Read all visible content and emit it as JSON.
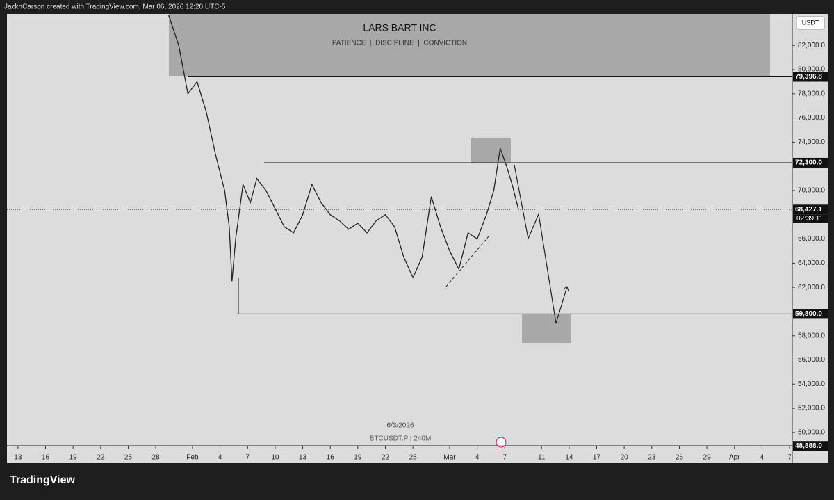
{
  "header": {
    "credit": "JacknCarson created with TradingView.com, Mar 06, 2026 12:20 UTC-5"
  },
  "footer": {
    "logo": "TradingView"
  },
  "chart_data": {
    "type": "line",
    "title": "LARS BART INC",
    "subtitle": "PATIENCE  |  DISCIPLINE  |  CONVICTION",
    "watermark": [
      "6/3/2026",
      "BTCUSDT.P | 240M"
    ],
    "currency_button": "USDT",
    "series": [
      {
        "name": "BTCUSDT.P",
        "color": "#222222",
        "x": [
          29.4,
          30.5,
          31.5,
          32.5,
          33.5,
          34.5,
          35.5,
          36,
          36.3,
          36.7,
          37.5,
          38.3,
          39,
          40,
          41,
          42,
          43,
          44,
          45,
          46,
          47,
          48,
          49,
          50,
          51,
          52,
          53,
          54,
          55,
          56,
          57,
          58,
          59,
          60,
          61,
          62,
          63,
          64,
          64.8,
          65.5,
          66.2,
          66.8,
          67.5
        ],
        "values": [
          84500,
          82000,
          78000,
          79000,
          76500,
          73000,
          70000,
          67000,
          62500,
          66000,
          70500,
          69000,
          71000,
          70000,
          68500,
          67000,
          66500,
          68000,
          70500,
          69000,
          68000,
          67500,
          66800,
          67300,
          66500,
          67500,
          68000,
          67000,
          64500,
          62800,
          64500,
          69500,
          67000,
          65000,
          63500,
          66500,
          66000,
          68000,
          70000,
          73500,
          72000,
          70500,
          68400
        ]
      }
    ],
    "xlim": [
      11.8,
      97.3
    ],
    "ylim": [
      48900,
      84600
    ],
    "xticks": [
      {
        "value": 13,
        "label": "13"
      },
      {
        "value": 16,
        "label": "16"
      },
      {
        "value": 19,
        "label": "19"
      },
      {
        "value": 22,
        "label": "22"
      },
      {
        "value": 25,
        "label": "25"
      },
      {
        "value": 28,
        "label": "28"
      },
      {
        "value": 32,
        "label": "Feb"
      },
      {
        "value": 35,
        "label": "4"
      },
      {
        "value": 38,
        "label": "7"
      },
      {
        "value": 41,
        "label": "10"
      },
      {
        "value": 44,
        "label": "13"
      },
      {
        "value": 47,
        "label": "16"
      },
      {
        "value": 50,
        "label": "19"
      },
      {
        "value": 53,
        "label": "22"
      },
      {
        "value": 56,
        "label": "25"
      },
      {
        "value": 60,
        "label": "Mar"
      },
      {
        "value": 63,
        "label": "4"
      },
      {
        "value": 66,
        "label": "7"
      },
      {
        "value": 70,
        "label": "11"
      },
      {
        "value": 73,
        "label": "14"
      },
      {
        "value": 76,
        "label": "17"
      },
      {
        "value": 79,
        "label": "20"
      },
      {
        "value": 82,
        "label": "23"
      },
      {
        "value": 85,
        "label": "26"
      },
      {
        "value": 88,
        "label": "29"
      },
      {
        "value": 91,
        "label": "Apr"
      },
      {
        "value": 94,
        "label": "4"
      },
      {
        "value": 97,
        "label": "7"
      }
    ],
    "yticks": [
      {
        "value": 50000,
        "label": "50,000.0"
      },
      {
        "value": 52000,
        "label": "52,000.0"
      },
      {
        "value": 54000,
        "label": "54,000.0"
      },
      {
        "value": 56000,
        "label": "56,000.0"
      },
      {
        "value": 58000,
        "label": "58,000.0"
      },
      {
        "value": 62000,
        "label": "62,000.0"
      },
      {
        "value": 64000,
        "label": "64,000.0"
      },
      {
        "value": 66000,
        "label": "66,000.0"
      },
      {
        "value": 70000,
        "label": "70,000.0"
      },
      {
        "value": 74000,
        "label": "74,000.0"
      },
      {
        "value": 76000,
        "label": "76,000.0"
      },
      {
        "value": 78000,
        "label": "78,000.0"
      },
      {
        "value": 80000,
        "label": "80,000.0"
      },
      {
        "value": 82000,
        "label": "82,000.0"
      }
    ],
    "levels": [
      {
        "value": 79396.8,
        "label": "79,396.8"
      },
      {
        "value": 72300,
        "label": "72,300.0"
      },
      {
        "value": 59800,
        "label": "59,800.0"
      },
      {
        "value": 48888,
        "label": "48,888.0"
      }
    ],
    "last_price": {
      "value": 68427.1,
      "label": "68,427.1",
      "countdown": "02:39:11"
    }
  }
}
